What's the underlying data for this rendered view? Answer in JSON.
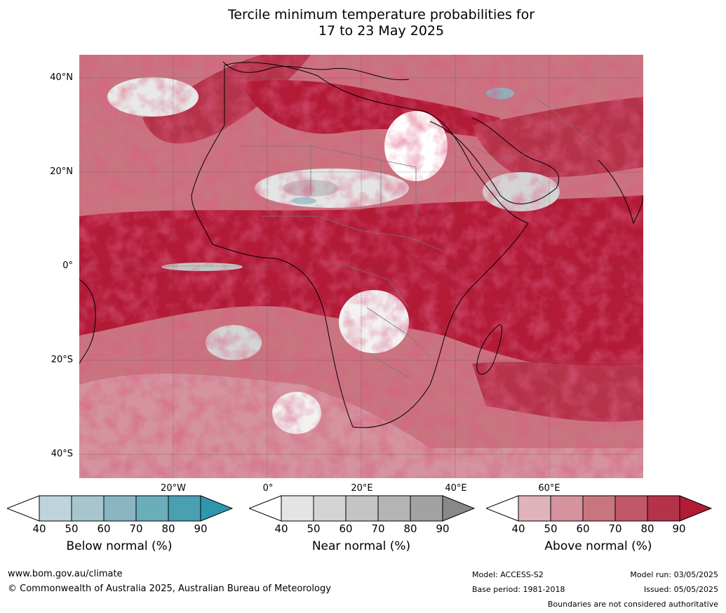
{
  "title_line1": "Tercile minimum temperature probabilities for",
  "title_line2": "17 to 23 May 2025",
  "lat_labels": [
    "40°N",
    "20°N",
    "0°",
    "20°S",
    "40°S"
  ],
  "lon_labels": [
    "20°W",
    "0°",
    "20°E",
    "40°E",
    "60°E"
  ],
  "colorbars": [
    {
      "title": "Below normal (%)",
      "ticks": [
        "40",
        "50",
        "60",
        "70",
        "80",
        "90"
      ],
      "colors": [
        "#ffffff",
        "#bed3da",
        "#a6c5cc",
        "#8ab5c2",
        "#6aaeb9",
        "#4a9fb0",
        "#2f97ad"
      ]
    },
    {
      "title": "Near normal (%)",
      "ticks": [
        "40",
        "50",
        "60",
        "70",
        "80",
        "90"
      ],
      "colors": [
        "#ffffff",
        "#e4e4e4",
        "#d4d4d4",
        "#c4c4c4",
        "#b4b4b4",
        "#a2a2a2",
        "#888888"
      ]
    },
    {
      "title": "Above normal (%)",
      "ticks": [
        "40",
        "50",
        "60",
        "70",
        "80",
        "90"
      ],
      "colors": [
        "#ffffff",
        "#e0b3bb",
        "#d4939e",
        "#c97580",
        "#c05868",
        "#b53349",
        "#b21a36"
      ]
    }
  ],
  "footer": {
    "url": "www.bom.gov.au/climate",
    "copyright": "© Commonwealth of Australia 2025, Australian Bureau of Meteorology",
    "model": "Model: ACCESS-S2",
    "base_period": "Base period: 1981-2018",
    "model_run": "Model run: 03/05/2025",
    "issued": "Issued: 05/05/2025",
    "disclaimer": "Boundaries are not considered authoritative"
  }
}
